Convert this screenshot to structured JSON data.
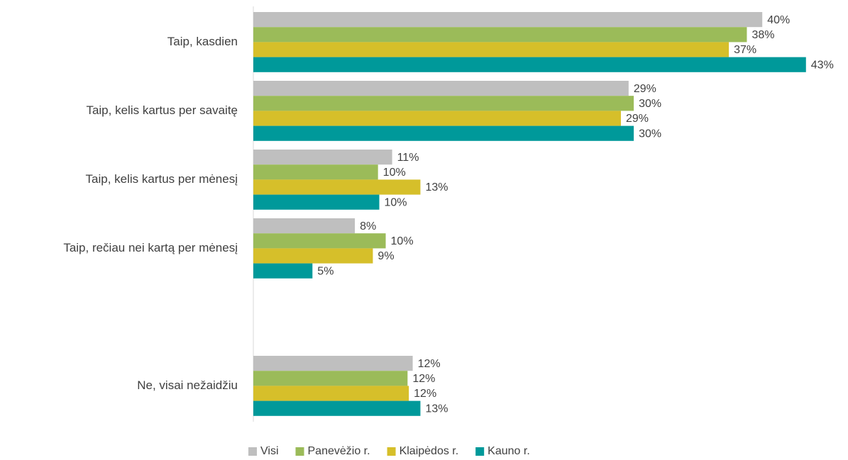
{
  "chart_data": {
    "type": "bar",
    "orientation": "horizontal",
    "categories": [
      "Taip, kasdien",
      "Taip, kelis kartus per savaitę",
      "Taip, kelis kartus per mėnesį",
      "Taip, rečiau nei kartą per mėnesį",
      null,
      "Ne, visai nežaidžiu"
    ],
    "series": [
      {
        "name": "Visi",
        "color": "#bfbfbf",
        "values": [
          39.6,
          29.2,
          10.8,
          7.9,
          null,
          12.4
        ],
        "value_labels": [
          "40%",
          "29%",
          "11%",
          "8%",
          null,
          "12%"
        ]
      },
      {
        "name": "Panevėžio r.",
        "color": "#9bbb59",
        "values": [
          38.4,
          29.6,
          9.7,
          10.3,
          null,
          12.0
        ],
        "value_labels": [
          "38%",
          "30%",
          "10%",
          "10%",
          null,
          "12%"
        ]
      },
      {
        "name": "Klaipėdos r.",
        "color": "#d6bf2a",
        "values": [
          37.0,
          28.6,
          13.0,
          9.3,
          null,
          12.1
        ],
        "value_labels": [
          "37%",
          "29%",
          "13%",
          "9%",
          null,
          "12%"
        ]
      },
      {
        "name": "Kauno r.",
        "color": "#00999a",
        "values": [
          43.0,
          29.6,
          9.8,
          4.6,
          null,
          13.0
        ],
        "value_labels": [
          "43%",
          "30%",
          "10%",
          "5%",
          null,
          "13%"
        ]
      }
    ],
    "xlim": [
      0,
      45
    ],
    "legend": "bottom"
  }
}
